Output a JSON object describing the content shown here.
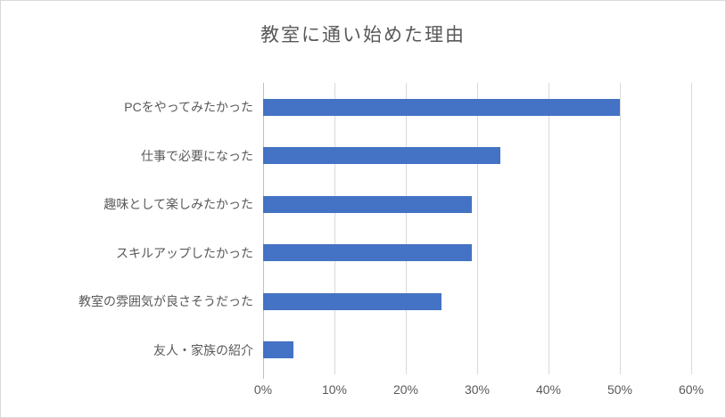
{
  "chart": {
    "background_color": "#FFFFFF",
    "border_color": "#D9D9D9"
  },
  "chart_data": {
    "type": "bar",
    "orientation": "horizontal",
    "title": "教室に通い始めた理由",
    "categories": [
      "PCをやってみたかった",
      "仕事で必要になった",
      "趣味として楽しみたかった",
      "スキルアップしたかった",
      "教室の雰囲気が良さそうだった",
      "友人・家族の紹介"
    ],
    "values": [
      50,
      33.3,
      29.2,
      29.2,
      25,
      4.2
    ],
    "value_unit": "%",
    "xlabel": "",
    "ylabel": "",
    "xlim": [
      0,
      60
    ],
    "x_tick_labels": [
      "0%",
      "10%",
      "20%",
      "30%",
      "40%",
      "50%",
      "60%"
    ],
    "x_tick_values": [
      0,
      10,
      20,
      30,
      40,
      50,
      60
    ],
    "grid": "vertical-only",
    "legend": "none",
    "bar_color": "#4472C4",
    "gridline_color": "#D9D9D9",
    "axis_line_color": "#BFBFBF",
    "text_color": "#595959"
  }
}
